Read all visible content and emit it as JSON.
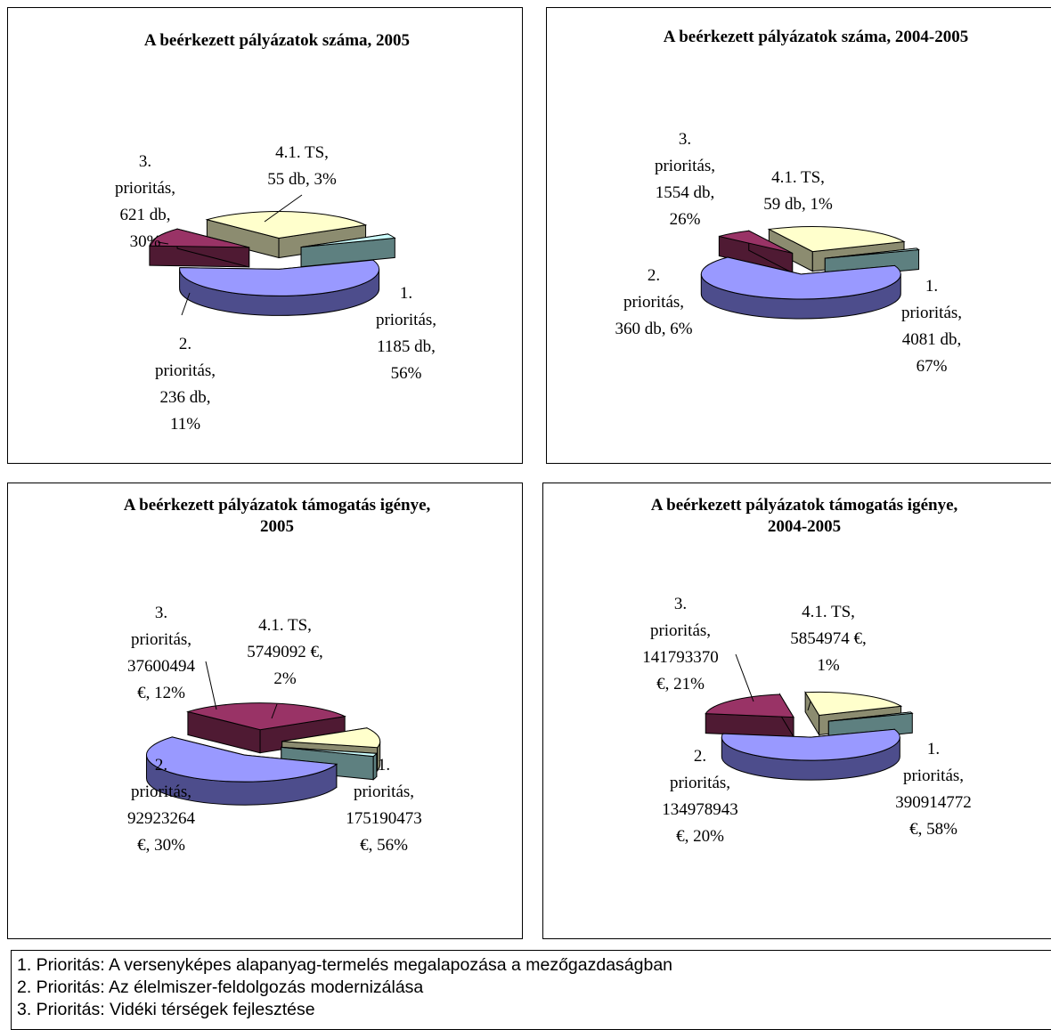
{
  "colors": {
    "p1_top": "#9999ff",
    "p1_side": "#4d4d8c",
    "p2_top": "#993366",
    "p2_side": "#4f1a33",
    "p3_top": "#ffffcc",
    "p3_side": "#8c8c70",
    "ts_top": "#ccffff",
    "ts_side": "#5e8080"
  },
  "chart_data": [
    {
      "type": "pie",
      "style": "exploded-3d",
      "title": "A beérkezett pályázatok száma, 2005",
      "slices": [
        {
          "name": "1. prioritás",
          "value": 1185,
          "unit": "db",
          "percent": 56,
          "label_lines": [
            "1.",
            "prioritás,",
            "1185 db,",
            "56%"
          ]
        },
        {
          "name": "2. prioritás",
          "value": 236,
          "unit": "db",
          "percent": 11,
          "label_lines": [
            "2.",
            "prioritás,",
            "236 db,",
            "11%"
          ]
        },
        {
          "name": "3. prioritás",
          "value": 621,
          "unit": "db",
          "percent": 30,
          "label_lines": [
            "3.",
            "prioritás,",
            "621 db,",
            "30%"
          ]
        },
        {
          "name": "4.1. TS",
          "value": 55,
          "unit": "db",
          "percent": 3,
          "label_lines": [
            "4.1. TS,",
            "55 db, 3%"
          ]
        }
      ]
    },
    {
      "type": "pie",
      "style": "exploded-3d",
      "title": "A beérkezett pályázatok száma, 2004-2005",
      "slices": [
        {
          "name": "1. prioritás",
          "value": 4081,
          "unit": "db",
          "percent": 67,
          "label_lines": [
            "1.",
            "prioritás,",
            "4081 db,",
            "67%"
          ]
        },
        {
          "name": "2. prioritás",
          "value": 360,
          "unit": "db",
          "percent": 6,
          "label_lines": [
            "2.",
            "prioritás,",
            "360 db, 6%"
          ]
        },
        {
          "name": "3. prioritás",
          "value": 1554,
          "unit": "db",
          "percent": 26,
          "label_lines": [
            "3.",
            "prioritás,",
            "1554 db,",
            "26%"
          ]
        },
        {
          "name": "4.1. TS",
          "value": 59,
          "unit": "db",
          "percent": 1,
          "label_lines": [
            "4.1. TS,",
            "59 db, 1%"
          ]
        }
      ]
    },
    {
      "type": "pie",
      "style": "exploded-3d",
      "title": "A beérkezett pályázatok támogatás igénye, 2005",
      "title_lines": [
        "A beérkezett pályázatok támogatás igénye,",
        "2005"
      ],
      "slices": [
        {
          "name": "1. prioritás",
          "value": 175190473,
          "unit": "€",
          "percent": 56,
          "label_lines": [
            "1.",
            "prioritás,",
            "175190473",
            "€, 56%"
          ]
        },
        {
          "name": "2. prioritás",
          "value": 92923264,
          "unit": "€",
          "percent": 30,
          "label_lines": [
            "2.",
            "prioritás,",
            "92923264",
            "€, 30%"
          ]
        },
        {
          "name": "3. prioritás",
          "value": 37600494,
          "unit": "€",
          "percent": 12,
          "label_lines": [
            "3.",
            "prioritás,",
            "37600494",
            "€, 12%"
          ]
        },
        {
          "name": "4.1. TS",
          "value": 5749092,
          "unit": "€",
          "percent": 2,
          "label_lines": [
            "4.1. TS,",
            "5749092 €,",
            "2%"
          ]
        }
      ]
    },
    {
      "type": "pie",
      "style": "exploded-3d",
      "title": "A beérkezett pályázatok támogatás igénye, 2004-2005",
      "title_lines": [
        "A beérkezett pályázatok támogatás igénye,",
        "2004-2005"
      ],
      "slices": [
        {
          "name": "1. prioritás",
          "value": 390914772,
          "unit": "€",
          "percent": 58,
          "label_lines": [
            "1.",
            "prioritás,",
            "390914772",
            "€, 58%"
          ]
        },
        {
          "name": "2. prioritás",
          "value": 134978943,
          "unit": "€",
          "percent": 20,
          "label_lines": [
            "2.",
            "prioritás,",
            "134978943",
            "€, 20%"
          ]
        },
        {
          "name": "3. prioritás",
          "value": 141793370,
          "unit": "€",
          "percent": 21,
          "label_lines": [
            "3.",
            "prioritás,",
            "141793370",
            "€, 21%"
          ]
        },
        {
          "name": "4.1. TS",
          "value": 5854974,
          "unit": "€",
          "percent": 1,
          "label_lines": [
            "4.1. TS,",
            "5854974 €,",
            "1%"
          ]
        }
      ]
    }
  ],
  "legend": [
    "1. Prioritás: A versenyképes alapanyag-termelés megalapozása a mezőgazdaságban",
    "2. Prioritás: Az élelmiszer-feldolgozás modernizálása",
    "3. Prioritás: Vidéki térségek fejlesztése"
  ]
}
